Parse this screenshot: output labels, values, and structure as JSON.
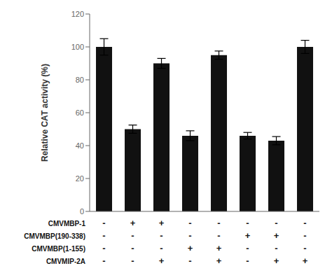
{
  "chart_data": {
    "type": "bar",
    "categories": [
      null,
      null,
      null,
      null,
      null,
      null,
      null,
      null
    ],
    "values": [
      100,
      50,
      90,
      46,
      95,
      46,
      43,
      100
    ],
    "errors": [
      5,
      2.5,
      3,
      3,
      2.5,
      2,
      2.5,
      4
    ],
    "color": "#111111",
    "ylabel": "Relative CAT activity (%)",
    "ylim": [
      0,
      120
    ],
    "yticks": [
      0,
      20,
      40,
      60,
      80,
      100,
      120
    ],
    "grid": false,
    "tick_labels": "y",
    "table": [
      {
        "label": "CMVMBP-1",
        "signs": [
          "-",
          "+",
          "+",
          "-",
          "-",
          "-",
          "-",
          "-"
        ]
      },
      {
        "label": "CMVMBP(190-338)",
        "signs": [
          "-",
          "-",
          "-",
          "-",
          "-",
          "+",
          "+",
          "-"
        ]
      },
      {
        "label": "CMVMBP(1-155)",
        "signs": [
          "-",
          "-",
          "-",
          "+",
          "+",
          "-",
          "-",
          "-"
        ]
      },
      {
        "label": "CMVMIP-2A",
        "signs": [
          "-",
          "-",
          "+",
          "-",
          "+",
          "-",
          "+",
          "+"
        ]
      }
    ]
  }
}
